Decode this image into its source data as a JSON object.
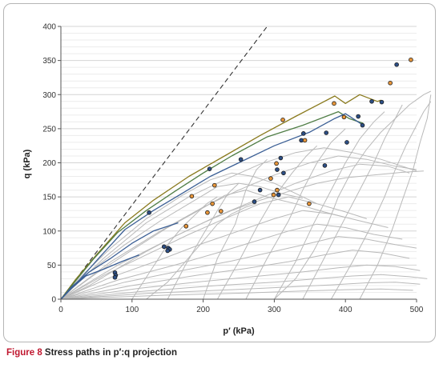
{
  "caption": {
    "label": "Figure 8",
    "text": " Stress paths in p′:q projection"
  },
  "chart_data": {
    "type": "line",
    "xlabel": "p′ (kPa)",
    "ylabel": "q (kPa)",
    "xlim": [
      0,
      500
    ],
    "ylim": [
      0,
      400
    ],
    "xticks": [
      0,
      100,
      200,
      300,
      400,
      500
    ],
    "yticks": [
      0,
      50,
      100,
      150,
      200,
      250,
      300,
      350,
      400
    ],
    "grid": true,
    "colors": {
      "grey": "#b9b9b9",
      "olive": "#8a7a1e",
      "green": "#4f7d45",
      "blue": "#3b5f95",
      "orange": "#e8963a",
      "navy": "#2d4f86",
      "dashed": "#333333"
    },
    "reference_line": {
      "style": "dashed",
      "x": [
        0,
        290
      ],
      "y": [
        0,
        400
      ]
    },
    "highlight_series": [
      {
        "color": "olive",
        "x": [
          0,
          20,
          50,
          90,
          130,
          180,
          230,
          280,
          330,
          385,
          400,
          420,
          445,
          450
        ],
        "y": [
          0,
          28,
          65,
          112,
          145,
          180,
          210,
          240,
          268,
          298,
          287,
          300,
          290,
          292
        ]
      },
      {
        "color": "green",
        "x": [
          0,
          20,
          45,
          80,
          120,
          160,
          200,
          240,
          290,
          340,
          390,
          405,
          425
        ],
        "y": [
          0,
          26,
          58,
          98,
          130,
          158,
          185,
          210,
          238,
          255,
          275,
          265,
          258
        ]
      },
      {
        "color": "blue",
        "x": [
          0,
          25,
          55,
          90,
          130,
          170,
          210,
          250,
          300,
          350,
          385,
          400,
          425
        ],
        "y": [
          0,
          27,
          62,
          102,
          130,
          155,
          180,
          200,
          225,
          245,
          265,
          272,
          255
        ]
      },
      {
        "color": "blue",
        "x": [
          0,
          15,
          40,
          70,
          100,
          130,
          165
        ],
        "y": [
          0,
          18,
          40,
          60,
          82,
          100,
          112
        ]
      },
      {
        "color": "blue",
        "x": [
          0,
          15,
          35,
          60,
          85,
          110
        ],
        "y": [
          0,
          16,
          34,
          44,
          55,
          65
        ]
      }
    ],
    "grey_series": [
      {
        "x": [
          0,
          30,
          70,
          120,
          170,
          210,
          240,
          270,
          300,
          320,
          340,
          360
        ],
        "y": [
          0,
          35,
          75,
          118,
          152,
          175,
          185,
          180,
          170,
          160,
          150,
          140
        ]
      },
      {
        "x": [
          0,
          40,
          90,
          140,
          180,
          220,
          250,
          280,
          310,
          340
        ],
        "y": [
          0,
          40,
          80,
          115,
          140,
          165,
          170,
          165,
          155,
          148
        ]
      },
      {
        "x": [
          0,
          50,
          100,
          150,
          190,
          230,
          260,
          290,
          330,
          370,
          400
        ],
        "y": [
          0,
          38,
          72,
          105,
          128,
          152,
          160,
          150,
          140,
          128,
          120
        ]
      },
      {
        "x": [
          0,
          60,
          120,
          180,
          230,
          280,
          320,
          360,
          400,
          430
        ],
        "y": [
          0,
          35,
          65,
          95,
          118,
          140,
          150,
          140,
          128,
          118
        ]
      },
      {
        "x": [
          0,
          70,
          140,
          200,
          250,
          300,
          340,
          380,
          420,
          460
        ],
        "y": [
          0,
          32,
          58,
          82,
          100,
          118,
          130,
          125,
          115,
          105
        ]
      },
      {
        "x": [
          0,
          80,
          160,
          220,
          270,
          320,
          360,
          400,
          440,
          480
        ],
        "y": [
          0,
          28,
          50,
          68,
          84,
          100,
          110,
          105,
          95,
          88
        ]
      },
      {
        "x": [
          0,
          90,
          170,
          240,
          300,
          350,
          390,
          430,
          470,
          500
        ],
        "y": [
          0,
          25,
          42,
          56,
          70,
          82,
          92,
          88,
          80,
          75
        ]
      },
      {
        "x": [
          0,
          100,
          190,
          260,
          320,
          370,
          410,
          450,
          490
        ],
        "y": [
          0,
          20,
          35,
          45,
          55,
          65,
          72,
          68,
          60
        ]
      },
      {
        "x": [
          0,
          110,
          200,
          280,
          340,
          390,
          430,
          470,
          505
        ],
        "y": [
          0,
          16,
          26,
          34,
          40,
          46,
          50,
          48,
          42
        ]
      },
      {
        "x": [
          0,
          120,
          220,
          300,
          360,
          410,
          450,
          490,
          515
        ],
        "y": [
          0,
          12,
          20,
          25,
          30,
          34,
          36,
          33,
          30
        ]
      },
      {
        "x": [
          0,
          130,
          240,
          320,
          380,
          430,
          470,
          505
        ],
        "y": [
          0,
          9,
          14,
          18,
          21,
          24,
          25,
          22
        ]
      },
      {
        "x": [
          0,
          150,
          260,
          340,
          400,
          450,
          495
        ],
        "y": [
          0,
          6,
          9,
          12,
          14,
          15,
          13
        ]
      },
      {
        "x": [
          0,
          60,
          120,
          180,
          230,
          280,
          330,
          370,
          410,
          450,
          480,
          500
        ],
        "y": [
          0,
          60,
          112,
          150,
          175,
          198,
          215,
          222,
          215,
          205,
          195,
          188
        ]
      },
      {
        "x": [
          0,
          70,
          140,
          200,
          250,
          300,
          350,
          390,
          430,
          470,
          500
        ],
        "y": [
          0,
          55,
          100,
          135,
          160,
          182,
          200,
          210,
          205,
          195,
          190
        ]
      },
      {
        "x": [
          0,
          80,
          160,
          220,
          280,
          330,
          380,
          420,
          460,
          490
        ],
        "y": [
          0,
          50,
          92,
          122,
          148,
          170,
          188,
          198,
          195,
          185
        ]
      },
      {
        "x": [
          200,
          220,
          245,
          260,
          275,
          290
        ],
        "y": [
          0,
          60,
          110,
          160,
          190,
          205
        ]
      },
      {
        "x": [
          220,
          250,
          275,
          300,
          325,
          345,
          360
        ],
        "y": [
          0,
          55,
          105,
          150,
          185,
          210,
          225
        ]
      },
      {
        "x": [
          260,
          290,
          320,
          340,
          360,
          380,
          400
        ],
        "y": [
          0,
          60,
          115,
          160,
          200,
          230,
          250
        ]
      },
      {
        "x": [
          300,
          330,
          355,
          380,
          400,
          420,
          440,
          455
        ],
        "y": [
          0,
          55,
          110,
          160,
          200,
          235,
          260,
          275
        ]
      },
      {
        "x": [
          340,
          370,
          395,
          420,
          440,
          455,
          470,
          480
        ],
        "y": [
          0,
          60,
          110,
          160,
          200,
          235,
          265,
          285
        ]
      },
      {
        "x": [
          380,
          410,
          435,
          455,
          470,
          485,
          500,
          510,
          520
        ],
        "y": [
          0,
          55,
          105,
          150,
          190,
          225,
          255,
          275,
          290
        ]
      },
      {
        "x": [
          420,
          445,
          465,
          480,
          495,
          505,
          515,
          520
        ],
        "y": [
          0,
          50,
          100,
          145,
          190,
          230,
          265,
          300
        ]
      },
      {
        "x": [
          150,
          175,
          200,
          220,
          235,
          250
        ],
        "y": [
          0,
          50,
          95,
          130,
          155,
          170
        ]
      },
      {
        "x": [
          100,
          125,
          150,
          170,
          190,
          205,
          220
        ],
        "y": [
          0,
          40,
          80,
          105,
          125,
          140,
          150
        ]
      },
      {
        "x": [
          300,
          330,
          355,
          375,
          390,
          410,
          430,
          450,
          470,
          490,
          510,
          520
        ],
        "y": [
          0,
          30,
          70,
          110,
          150,
          190,
          220,
          245,
          265,
          285,
          300,
          305
        ]
      },
      {
        "x": [
          120,
          150,
          175,
          200,
          220,
          240,
          260,
          275
        ],
        "y": [
          0,
          25,
          55,
          85,
          110,
          125,
          135,
          140
        ]
      },
      {
        "x": [
          0,
          40,
          80,
          120,
          160,
          200,
          240,
          280,
          320,
          360,
          400,
          440,
          480,
          510
        ],
        "y": [
          0,
          20,
          45,
          70,
          92,
          112,
          130,
          145,
          158,
          170,
          178,
          182,
          186,
          188
        ]
      }
    ],
    "points": [
      {
        "x": 124,
        "y": 127,
        "c": "navy"
      },
      {
        "x": 209,
        "y": 191,
        "c": "navy"
      },
      {
        "x": 253,
        "y": 205,
        "c": "navy"
      },
      {
        "x": 184,
        "y": 151,
        "c": "orange"
      },
      {
        "x": 216,
        "y": 167,
        "c": "orange"
      },
      {
        "x": 213,
        "y": 140,
        "c": "orange"
      },
      {
        "x": 206,
        "y": 127,
        "c": "orange"
      },
      {
        "x": 225,
        "y": 129,
        "c": "orange"
      },
      {
        "x": 176,
        "y": 107,
        "c": "orange"
      },
      {
        "x": 145,
        "y": 77,
        "c": "navy"
      },
      {
        "x": 151,
        "y": 75,
        "c": "navy"
      },
      {
        "x": 153,
        "y": 73,
        "c": "navy"
      },
      {
        "x": 150,
        "y": 71,
        "c": "navy"
      },
      {
        "x": 76,
        "y": 39,
        "c": "navy"
      },
      {
        "x": 77,
        "y": 35,
        "c": "navy"
      },
      {
        "x": 76,
        "y": 32,
        "c": "navy"
      },
      {
        "x": 272,
        "y": 143,
        "c": "navy"
      },
      {
        "x": 280,
        "y": 160,
        "c": "navy"
      },
      {
        "x": 295,
        "y": 177,
        "c": "orange"
      },
      {
        "x": 299,
        "y": 153,
        "c": "orange"
      },
      {
        "x": 304,
        "y": 160,
        "c": "orange"
      },
      {
        "x": 306,
        "y": 153,
        "c": "navy"
      },
      {
        "x": 304,
        "y": 190,
        "c": "navy"
      },
      {
        "x": 309,
        "y": 207,
        "c": "navy"
      },
      {
        "x": 313,
        "y": 185,
        "c": "navy"
      },
      {
        "x": 303,
        "y": 199,
        "c": "orange"
      },
      {
        "x": 312,
        "y": 263,
        "c": "orange"
      },
      {
        "x": 338,
        "y": 233,
        "c": "navy"
      },
      {
        "x": 341,
        "y": 243,
        "c": "navy"
      },
      {
        "x": 343,
        "y": 233,
        "c": "orange"
      },
      {
        "x": 349,
        "y": 140,
        "c": "orange"
      },
      {
        "x": 371,
        "y": 196,
        "c": "navy"
      },
      {
        "x": 373,
        "y": 244,
        "c": "navy"
      },
      {
        "x": 384,
        "y": 287,
        "c": "orange"
      },
      {
        "x": 398,
        "y": 267,
        "c": "orange"
      },
      {
        "x": 402,
        "y": 230,
        "c": "navy"
      },
      {
        "x": 418,
        "y": 268,
        "c": "navy"
      },
      {
        "x": 424,
        "y": 255,
        "c": "navy"
      },
      {
        "x": 437,
        "y": 290,
        "c": "navy"
      },
      {
        "x": 451,
        "y": 289,
        "c": "navy"
      },
      {
        "x": 463,
        "y": 317,
        "c": "orange"
      },
      {
        "x": 472,
        "y": 344,
        "c": "navy"
      },
      {
        "x": 492,
        "y": 351,
        "c": "orange"
      }
    ]
  }
}
